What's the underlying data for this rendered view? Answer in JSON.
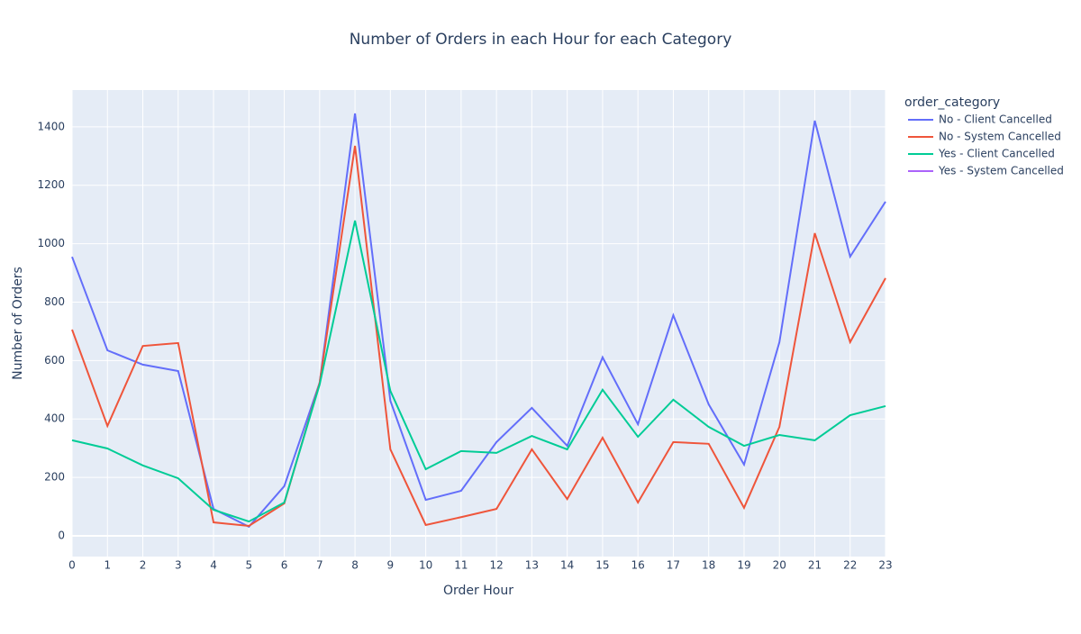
{
  "chart_data": {
    "type": "line",
    "title": "Number of Orders in each Hour for each Category",
    "x_label": "Order Hour",
    "y_label": "Number of Orders",
    "legend_title": "order_category",
    "x": [
      0,
      1,
      2,
      3,
      4,
      5,
      6,
      7,
      8,
      9,
      10,
      11,
      12,
      13,
      14,
      15,
      16,
      17,
      18,
      19,
      20,
      21,
      22,
      23
    ],
    "series": [
      {
        "name": "No - Client Cancelled",
        "color": "#636efa",
        "values": [
          955,
          635,
          586,
          564,
          92,
          31,
          170,
          524,
          1446,
          462,
          123,
          154,
          321,
          438,
          308,
          611,
          382,
          755,
          450,
          244,
          663,
          1421,
          956,
          1144
        ]
      },
      {
        "name": "No - System Cancelled",
        "color": "#EF553B",
        "values": [
          706,
          376,
          650,
          660,
          46,
          34,
          111,
          524,
          1335,
          296,
          37,
          64,
          92,
          296,
          126,
          336,
          114,
          321,
          315,
          96,
          373,
          1036,
          663,
          882
        ]
      },
      {
        "name": "Yes - Client Cancelled",
        "color": "#00cc96",
        "values": [
          327,
          299,
          241,
          197,
          89,
          49,
          114,
          518,
          1079,
          496,
          228,
          290,
          284,
          342,
          296,
          500,
          339,
          466,
          373,
          308,
          345,
          327,
          413,
          444
        ]
      },
      {
        "name": "Yes - System Cancelled",
        "color": "#ab63fa",
        "values": [
          null,
          null,
          null,
          null,
          null,
          null,
          null,
          null,
          null,
          null,
          null,
          null,
          null,
          null,
          null,
          null,
          null,
          null,
          null,
          null,
          null,
          null,
          null,
          null
        ]
      }
    ],
    "xlim": [
      0,
      23
    ],
    "xticks": [
      0,
      1,
      2,
      3,
      4,
      5,
      6,
      7,
      8,
      9,
      10,
      11,
      12,
      13,
      14,
      15,
      16,
      17,
      18,
      19,
      20,
      21,
      22,
      23
    ],
    "ylim": [
      -71,
      1526
    ],
    "yticks": [
      0,
      200,
      400,
      600,
      800,
      1000,
      1200,
      1400
    ],
    "grid": true,
    "legend": "right"
  }
}
